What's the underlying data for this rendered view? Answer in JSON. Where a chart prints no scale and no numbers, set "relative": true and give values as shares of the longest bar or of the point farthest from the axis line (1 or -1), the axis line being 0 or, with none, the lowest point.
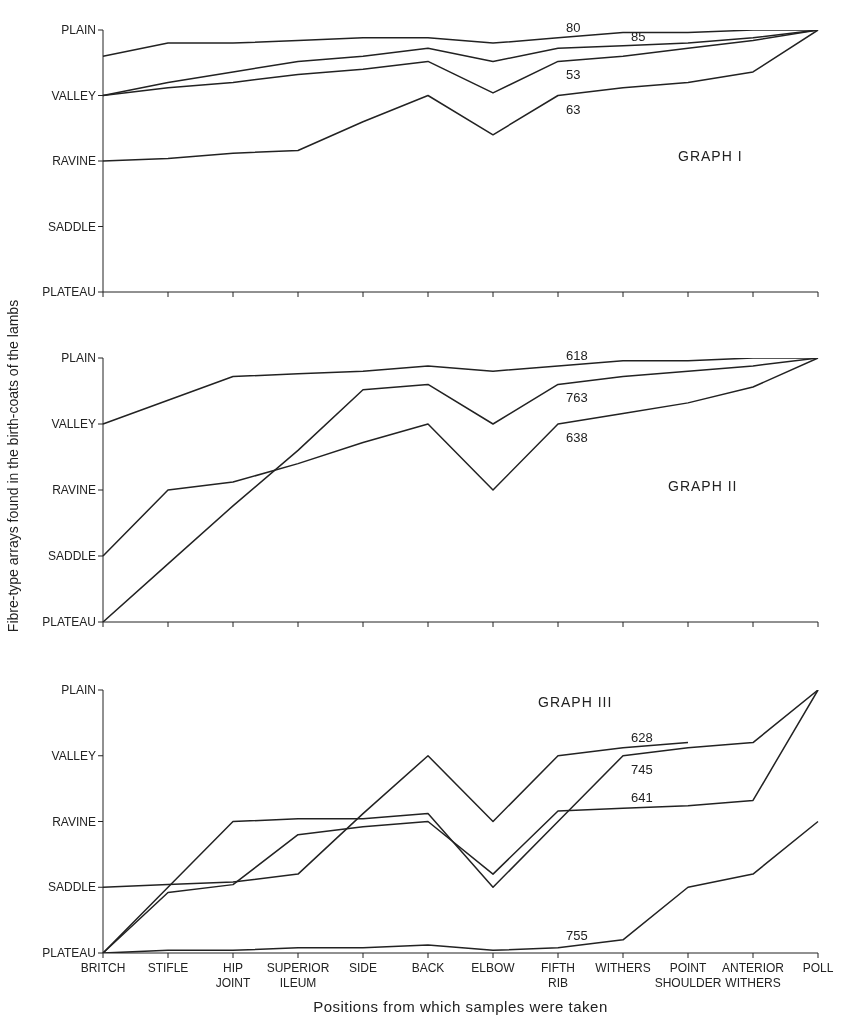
{
  "chart_data": [
    {
      "type": "line",
      "title": "GRAPH I",
      "categories": [
        null,
        null,
        null,
        null,
        null,
        null,
        null,
        null,
        null,
        null,
        null,
        null
      ],
      "relative": true,
      "marker": "none",
      "annotations": [
        "PLATEAU",
        "SADDLE",
        "RAVINE",
        "VALLEY",
        "PLAIN"
      ],
      "series": [
        {
          "name": "80",
          "color": "#222222",
          "values": [
            0.9,
            0.95,
            0.95,
            0.96,
            0.97,
            0.97,
            0.95,
            0.97,
            0.99,
            0.99,
            1,
            1
          ]
        },
        {
          "name": "85",
          "color": "#222222",
          "values": [
            0.75,
            0.8,
            0.84,
            0.88,
            0.9,
            0.93,
            0.88,
            0.93,
            0.94,
            0.95,
            0.97,
            1
          ]
        },
        {
          "name": "53",
          "color": "#222222",
          "values": [
            0.75,
            0.78,
            0.8,
            0.83,
            0.85,
            0.88,
            0.76,
            0.88,
            0.9,
            0.93,
            0.96,
            1
          ]
        },
        {
          "name": "63",
          "color": "#222222",
          "values": [
            0.5,
            0.51,
            0.53,
            0.54,
            0.65,
            0.75,
            0.6,
            0.75,
            0.78,
            0.8,
            0.84,
            1
          ]
        }
      ]
    },
    {
      "type": "line",
      "title": "GRAPH II",
      "ylabel": "Fibre-type arrays found in the birth-coats of the lambs",
      "categories": [
        null,
        null,
        null,
        null,
        null,
        null,
        null,
        null,
        null,
        null,
        null,
        null
      ],
      "relative": true,
      "marker": "none",
      "annotations": [
        "PLATEAU",
        "SADDLE",
        "RAVINE",
        "VALLEY",
        "PLAIN"
      ],
      "series": [
        {
          "name": "618",
          "color": "#222222",
          "values": [
            0.75,
            0.84,
            0.93,
            0.94,
            0.95,
            0.97,
            0.95,
            0.97,
            0.99,
            0.99,
            1,
            1
          ]
        },
        {
          "name": "763",
          "color": "#222222",
          "values": [
            0,
            0.22,
            0.44,
            0.65,
            0.88,
            0.9,
            0.75,
            0.9,
            0.93,
            0.95,
            0.97,
            1
          ]
        },
        {
          "name": "638",
          "color": "#222222",
          "values": [
            0.25,
            0.5,
            0.53,
            0.6,
            0.68,
            0.75,
            0.5,
            0.75,
            0.79,
            0.83,
            0.89,
            1
          ]
        }
      ]
    },
    {
      "type": "line",
      "title": "GRAPH III",
      "xlabel": "Positions from which samples were taken",
      "categories": [
        "BRITCH",
        "STIFLE",
        "HIP JOINT",
        "SUPERIOR ILEUM",
        "SIDE",
        "BACK",
        "ELBOW",
        "FIFTH RIB",
        "WITHERS",
        "POINT SHOULDER",
        "ANTERIOR WITHERS",
        "POLL"
      ],
      "relative": true,
      "marker": "none",
      "annotations": [
        "PLATEAU",
        "SADDLE",
        "RAVINE",
        "VALLEY",
        "PLAIN"
      ],
      "series": [
        {
          "name": "628",
          "color": "#222222",
          "values": [
            0.25,
            0.26,
            0.27,
            0.3,
            0.53,
            0.75,
            0.5,
            0.75,
            0.78,
            0.8,
            null,
            null
          ]
        },
        {
          "name": "745",
          "color": "#222222",
          "values": [
            0,
            0.25,
            0.5,
            0.51,
            0.51,
            0.53,
            0.25,
            0.5,
            0.75,
            0.78,
            0.8,
            1
          ]
        },
        {
          "name": "641",
          "color": "#222222",
          "values": [
            0,
            0.23,
            0.26,
            0.45,
            0.48,
            0.5,
            0.3,
            0.54,
            0.55,
            0.56,
            0.58,
            1
          ]
        },
        {
          "name": "755",
          "color": "#222222",
          "values": [
            0,
            0.01,
            0.01,
            0.02,
            0.02,
            0.03,
            0.01,
            0.02,
            0.05,
            0.25,
            0.3,
            0.5
          ]
        }
      ]
    }
  ]
}
